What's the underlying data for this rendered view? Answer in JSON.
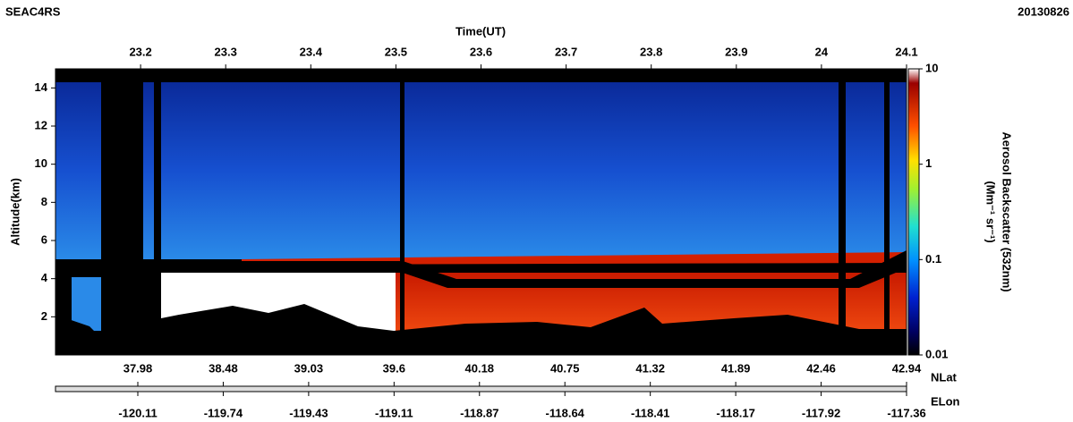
{
  "chart_data": {
    "type": "heatmap",
    "title": "SEAC4RS",
    "date": "20130826",
    "x_label": "Time(UT)",
    "xlim": [
      23.1,
      24.1
    ],
    "xticks": [
      23.2,
      23.3,
      23.4,
      23.5,
      23.6,
      23.7,
      23.8,
      23.9,
      24,
      24.1
    ],
    "y_label": "Altitude(km)",
    "ylim": [
      0,
      15
    ],
    "yticks": [
      2,
      4,
      6,
      8,
      10,
      12,
      14
    ],
    "colorbar_label": "Aerosol Backscatter (532nm)",
    "colorbar_unit": "(Mm⁻¹ sr⁻¹)",
    "clim": [
      0.01,
      10
    ],
    "cticks": [
      0.01,
      0.1,
      1,
      10
    ],
    "clog": true,
    "lat_label": "NLat",
    "lat_labels": [
      "37.98",
      "38.48",
      "39.03",
      "39.6",
      "40.18",
      "40.75",
      "41.32",
      "41.89",
      "42.46",
      "42.94"
    ],
    "lon_label": "ELon",
    "lon_labels": [
      "-120.11",
      "-119.74",
      "-119.43",
      "-119.11",
      "-118.87",
      "-118.64",
      "-118.41",
      "-118.17",
      "-117.92",
      "-117.36"
    ]
  }
}
